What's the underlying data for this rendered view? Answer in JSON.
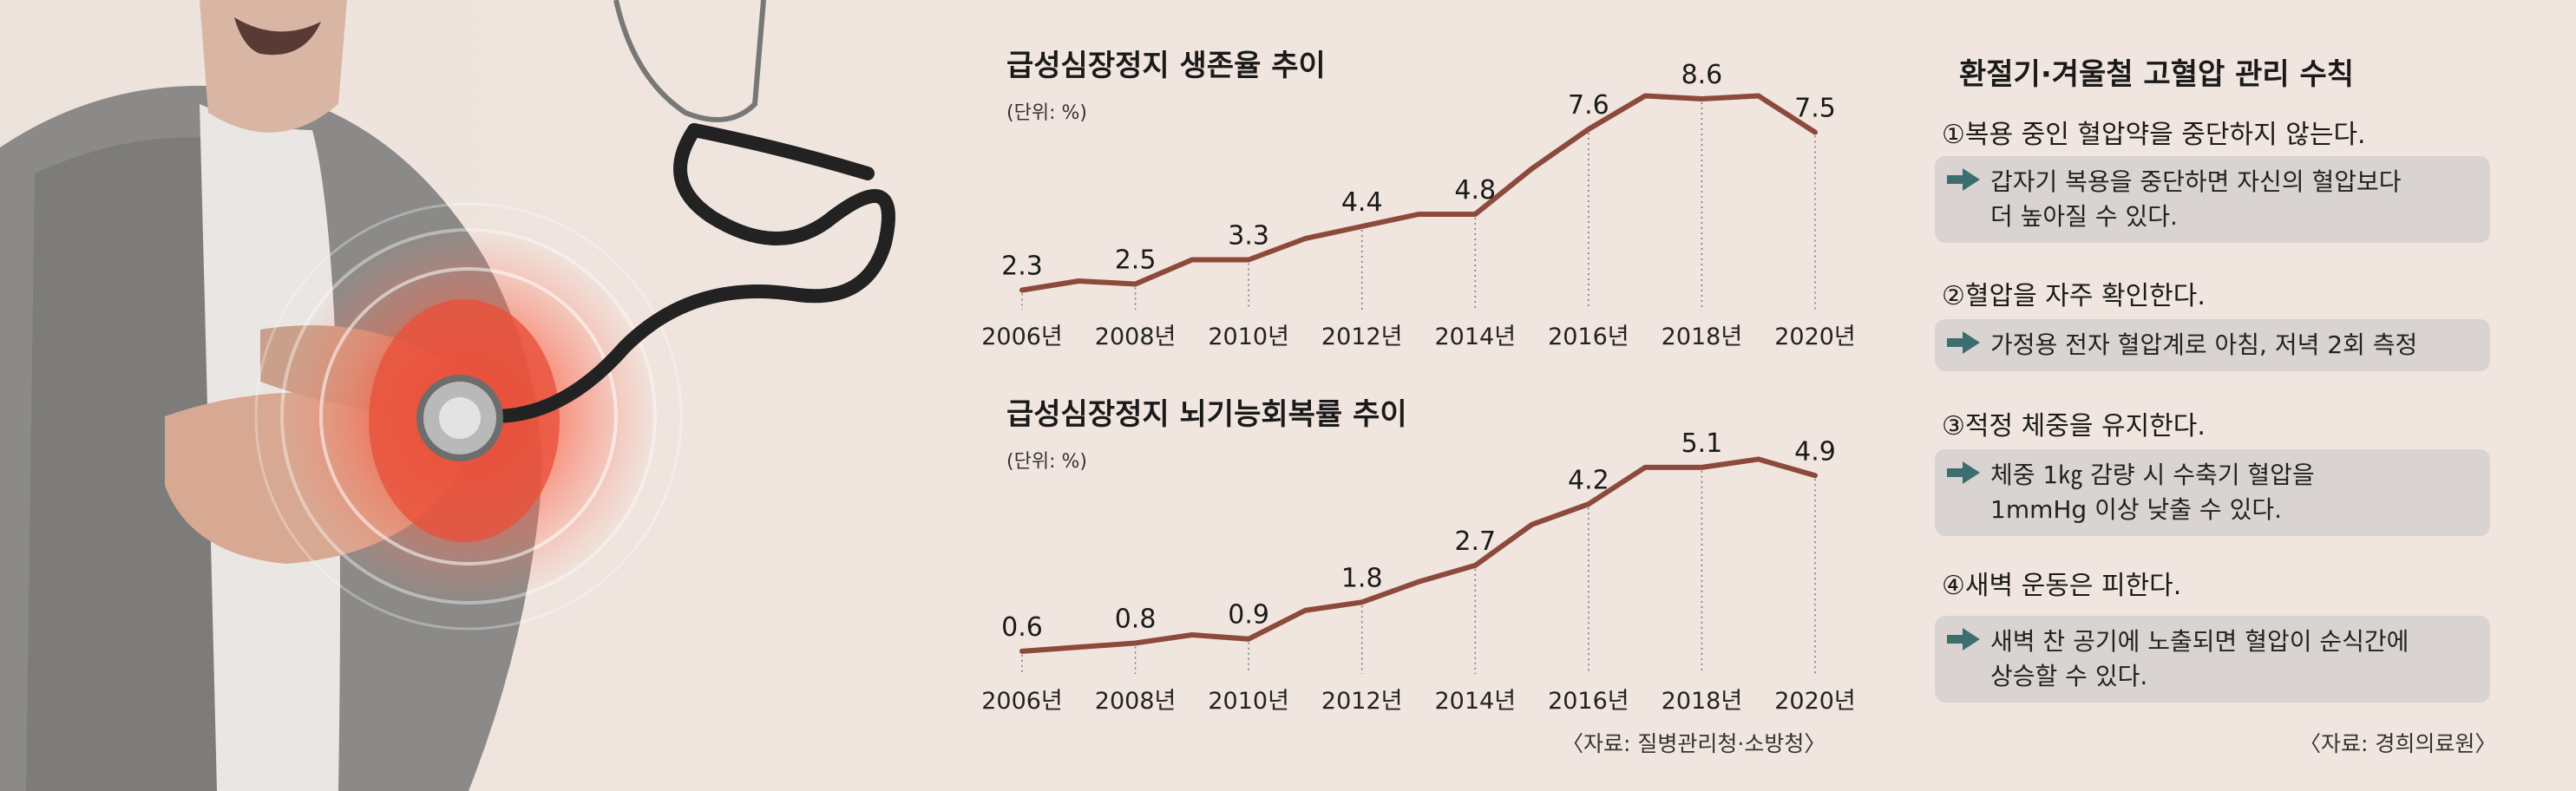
{
  "charts": [
    {
      "title": "급성심장정지 생존율 추이",
      "unit": "(단위: %)",
      "chart_data": {
        "type": "line",
        "x": [
          2006,
          2007,
          2008,
          2009,
          2010,
          2011,
          2012,
          2013,
          2014,
          2015,
          2016,
          2017,
          2018,
          2019,
          2020
        ],
        "values": [
          2.3,
          2.6,
          2.5,
          3.3,
          3.3,
          4.0,
          4.4,
          4.8,
          4.8,
          6.3,
          7.6,
          8.7,
          8.6,
          8.7,
          7.5
        ],
        "labeled_points": [
          {
            "x": 2006,
            "label": "2.3"
          },
          {
            "x": 2008,
            "label": "2.5"
          },
          {
            "x": 2010,
            "label": "3.3"
          },
          {
            "x": 2012,
            "label": "4.4"
          },
          {
            "x": 2014,
            "label": "4.8"
          },
          {
            "x": 2016,
            "label": "7.6"
          },
          {
            "x": 2018,
            "label": "8.6"
          },
          {
            "x": 2020,
            "label": "7.5"
          }
        ],
        "tick_labels": [
          "2006년",
          "2008년",
          "2010년",
          "2012년",
          "2014년",
          "2016년",
          "2018년",
          "2020년"
        ],
        "ylim": [
          2.0,
          9.0
        ],
        "line_color": "#8b4a3c"
      }
    },
    {
      "title": "급성심장정지 뇌기능회복률 추이",
      "unit": "(단위: %)",
      "chart_data": {
        "type": "line",
        "x": [
          2006,
          2007,
          2008,
          2009,
          2010,
          2011,
          2012,
          2013,
          2014,
          2015,
          2016,
          2017,
          2018,
          2019,
          2020
        ],
        "values": [
          0.6,
          0.7,
          0.8,
          1.0,
          0.9,
          1.6,
          1.8,
          2.3,
          2.7,
          3.7,
          4.2,
          5.1,
          5.1,
          5.3,
          4.9
        ],
        "labeled_points": [
          {
            "x": 2006,
            "label": "0.6"
          },
          {
            "x": 2008,
            "label": "0.8"
          },
          {
            "x": 2010,
            "label": "0.9"
          },
          {
            "x": 2012,
            "label": "1.8"
          },
          {
            "x": 2014,
            "label": "2.7"
          },
          {
            "x": 2016,
            "label": "4.2"
          },
          {
            "x": 2018,
            "label": "5.1"
          },
          {
            "x": 2020,
            "label": "4.9"
          }
        ],
        "tick_labels": [
          "2006년",
          "2008년",
          "2010년",
          "2012년",
          "2014년",
          "2016년",
          "2018년",
          "2020년"
        ],
        "ylim": [
          0.3,
          5.5
        ],
        "line_color": "#8b4a3c"
      }
    }
  ],
  "charts_source": "〈자료: 질병관리청·소방청〉",
  "rules": {
    "title": "환절기·겨울철 고혈압 관리 수칙",
    "items": [
      {
        "head": "①복용 중인 혈압약을 중단하지 않는다.",
        "detail": "갑자기 복용을 중단하면 자신의 혈압보다\n더 높아질 수 있다."
      },
      {
        "head": "②혈압을 자주 확인한다.",
        "detail": "가정용 전자 혈압계로 아침, 저녁 2회 측정"
      },
      {
        "head": "③적정 체중을 유지한다.",
        "detail": "체중 1㎏ 감량 시 수축기 혈압을\n1mmHg 이상 낮출 수 있다."
      },
      {
        "head": "④새벽 운동은 피한다.",
        "detail": "새벽 찬 공기에 노출되면 혈압이 순식간에\n상승할 수 있다."
      }
    ],
    "source": "〈자료: 경희의료원〉"
  },
  "colors": {
    "background": "#f1e5df",
    "line": "#8b4a3c",
    "box": "#d9d4d2",
    "arrow": "#3d6e6e"
  }
}
